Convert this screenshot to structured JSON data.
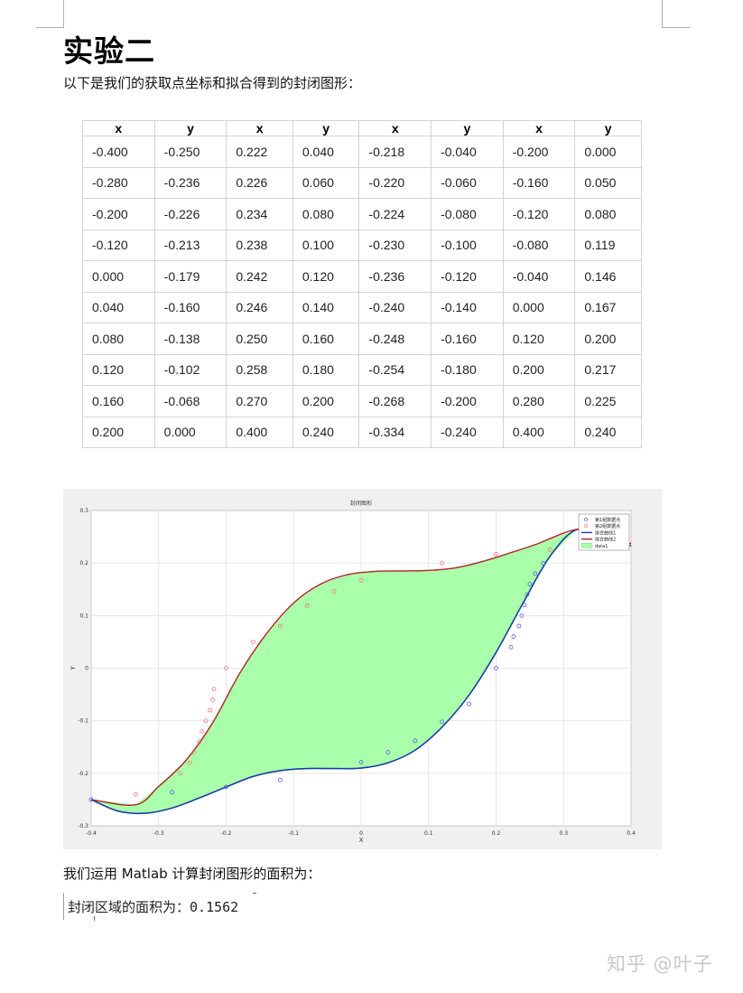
{
  "heading": "实验二",
  "intro": "以下是我们的获取点坐标和拟合得到的封闭图形：",
  "table": {
    "headers": [
      "x",
      "y",
      "x",
      "y",
      "x",
      "y",
      "x",
      "y"
    ],
    "rows": [
      [
        "-0.400",
        "-0.250",
        "0.222",
        "0.040",
        "-0.218",
        "-0.040",
        "-0.200",
        "0.000"
      ],
      [
        "-0.280",
        "-0.236",
        "0.226",
        "0.060",
        "-0.220",
        "-0.060",
        "-0.160",
        "0.050"
      ],
      [
        "-0.200",
        "-0.226",
        "0.234",
        "0.080",
        "-0.224",
        "-0.080",
        "-0.120",
        "0.080"
      ],
      [
        "-0.120",
        "-0.213",
        "0.238",
        "0.100",
        "-0.230",
        "-0.100",
        "-0.080",
        "0.119"
      ],
      [
        "0.000",
        "-0.179",
        "0.242",
        "0.120",
        "-0.236",
        "-0.120",
        "-0.040",
        "0.146"
      ],
      [
        "0.040",
        "-0.160",
        "0.246",
        "0.140",
        "-0.240",
        "-0.140",
        "0.000",
        "0.167"
      ],
      [
        "0.080",
        "-0.138",
        "0.250",
        "0.160",
        "-0.248",
        "-0.160",
        "0.120",
        "0.200"
      ],
      [
        "0.120",
        "-0.102",
        "0.258",
        "0.180",
        "-0.254",
        "-0.180",
        "0.200",
        "0.217"
      ],
      [
        "0.160",
        "-0.068",
        "0.270",
        "0.200",
        "-0.268",
        "-0.200",
        "0.280",
        "0.225"
      ],
      [
        "0.200",
        "0.000",
        "0.400",
        "0.240",
        "-0.334",
        "-0.240",
        "0.400",
        "0.240"
      ]
    ]
  },
  "chart_data": {
    "type": "area",
    "title": "封闭图形",
    "xlabel": "X",
    "ylabel": "Y",
    "xlim": [
      -0.4,
      0.4
    ],
    "ylim": [
      -0.3,
      0.3
    ],
    "xticks": [
      "-0.4",
      "-0.3",
      "-0.2",
      "-0.1",
      "0",
      "0.1",
      "0.2",
      "0.3",
      "0.4"
    ],
    "yticks": [
      "-0.3",
      "-0.2",
      "-0.1",
      "0",
      "0.1",
      "0.2",
      "0.3"
    ],
    "grid": true,
    "legend_position": "top-right",
    "colors": {
      "points1": "#4040ff",
      "points2": "#ff6060",
      "curve1": "#1a3fa8",
      "curve2": "#b22222",
      "fill": "#aaffaa"
    },
    "series": [
      {
        "name": "第1组数据点",
        "kind": "scatter",
        "x": [
          -0.4,
          -0.28,
          -0.2,
          -0.12,
          0.0,
          0.04,
          0.08,
          0.12,
          0.16,
          0.2,
          0.222,
          0.226,
          0.234,
          0.238,
          0.242,
          0.246,
          0.25,
          0.258,
          0.27
        ],
        "y": [
          -0.25,
          -0.236,
          -0.226,
          -0.213,
          -0.179,
          -0.16,
          -0.138,
          -0.102,
          -0.068,
          0.0,
          0.04,
          0.06,
          0.08,
          0.1,
          0.12,
          0.14,
          0.16,
          0.18,
          0.2
        ]
      },
      {
        "name": "第2组数据点",
        "kind": "scatter",
        "x": [
          -0.218,
          -0.22,
          -0.224,
          -0.23,
          -0.236,
          -0.24,
          -0.248,
          -0.254,
          -0.268,
          -0.334,
          -0.2,
          -0.16,
          -0.12,
          -0.08,
          -0.04,
          0.0,
          0.12,
          0.2,
          0.28
        ],
        "y": [
          -0.04,
          -0.06,
          -0.08,
          -0.1,
          -0.12,
          -0.14,
          -0.16,
          -0.18,
          -0.2,
          -0.24,
          0.0,
          0.05,
          0.08,
          0.119,
          0.146,
          0.167,
          0.2,
          0.217,
          0.225
        ]
      },
      {
        "name": "拟合曲线1",
        "kind": "line",
        "x": [
          -0.4,
          -0.36,
          -0.32,
          -0.28,
          -0.24,
          -0.2,
          -0.16,
          -0.12,
          -0.08,
          -0.04,
          0.0,
          0.04,
          0.08,
          0.12,
          0.16,
          0.2,
          0.24,
          0.28,
          0.32,
          0.36,
          0.4
        ],
        "y": [
          -0.25,
          -0.272,
          -0.276,
          -0.266,
          -0.247,
          -0.226,
          -0.206,
          -0.195,
          -0.191,
          -0.191,
          -0.19,
          -0.18,
          -0.156,
          -0.112,
          -0.051,
          0.03,
          0.124,
          0.213,
          0.264,
          0.245,
          0.233
        ]
      },
      {
        "name": "拟合曲线2",
        "kind": "line",
        "x": [
          -0.4,
          -0.334,
          -0.3,
          -0.26,
          -0.22,
          -0.18,
          -0.14,
          -0.1,
          -0.06,
          -0.02,
          0.02,
          0.06,
          0.1,
          0.14,
          0.18,
          0.22,
          0.26,
          0.32,
          0.36,
          0.4
        ],
        "y": [
          -0.25,
          -0.26,
          -0.225,
          -0.176,
          -0.104,
          -0.01,
          0.066,
          0.124,
          0.16,
          0.178,
          0.184,
          0.185,
          0.186,
          0.191,
          0.203,
          0.219,
          0.236,
          0.264,
          0.25,
          0.237
        ]
      },
      {
        "name": "data1",
        "kind": "fill-between"
      }
    ]
  },
  "calc_text": "我们运用 Matlab 计算封闭图形的面积为：",
  "result_label": "封闭区域的面积为：",
  "result_value": "0.1562",
  "watermark": "知乎 @叶子"
}
